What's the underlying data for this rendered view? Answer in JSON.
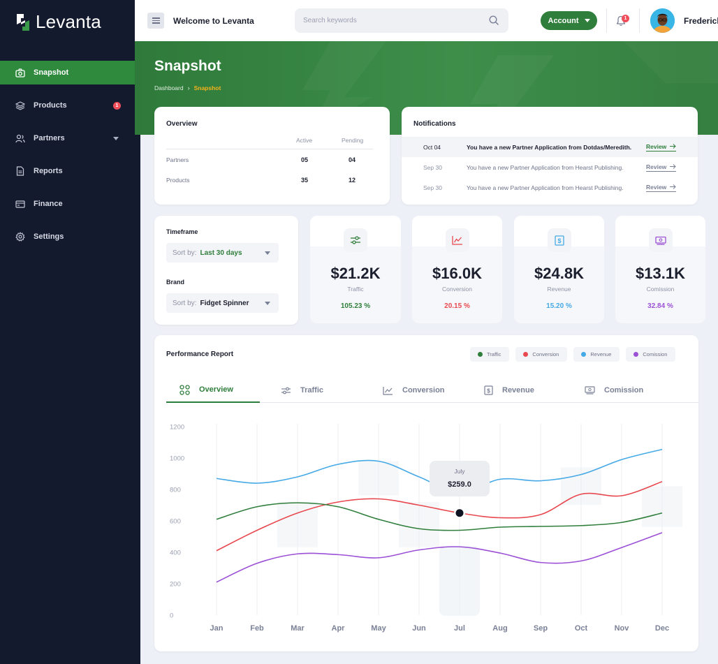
{
  "app": {
    "brand": "Levanta",
    "welcome": "Welcome to Levanta",
    "search_placeholder": "Search keywords",
    "account_label": "Account",
    "notification_count": "1",
    "user_name": "Frederick"
  },
  "sidebar": {
    "items": [
      {
        "label": "Snapshot",
        "icon": "camera-icon",
        "active": true
      },
      {
        "label": "Products",
        "icon": "layers-icon",
        "badge": "1"
      },
      {
        "label": "Partners",
        "icon": "users-icon",
        "expandable": true
      },
      {
        "label": "Reports",
        "icon": "document-icon"
      },
      {
        "label": "Finance",
        "icon": "wallet-icon"
      },
      {
        "label": "Settings",
        "icon": "gear-icon"
      }
    ]
  },
  "header": {
    "title": "Snapshot",
    "breadcrumb": [
      "Dashboard",
      "Snapshot"
    ]
  },
  "overview": {
    "title": "Overview",
    "columns": [
      "Active",
      "Pending"
    ],
    "rows": [
      {
        "label": "Partners",
        "active": "05",
        "pending": "04"
      },
      {
        "label": "Products",
        "active": "35",
        "pending": "12"
      }
    ]
  },
  "notifications": {
    "title": "Notifications",
    "review_label": "Review",
    "items": [
      {
        "date": "Oct 04",
        "message": "You have a new Partner Application from Dotdas/Meredith."
      },
      {
        "date": "Sep 30",
        "message": "You have a new Partner Application from Hearst Publishing."
      },
      {
        "date": "Sep 30",
        "message": "You have a new Partner Application from Hearst Publishing."
      }
    ]
  },
  "filters": {
    "timeframe_label": "Timeframe",
    "timeframe_prefix": "Sort by:",
    "timeframe_value": "Last 30 days",
    "brand_label": "Brand",
    "brand_prefix": "Sort by:",
    "brand_value": "Fidget Spinner"
  },
  "stats": [
    {
      "value": "$21.2K",
      "label": "Traffic",
      "pct": "105.23 %",
      "color": "#2f7e3b",
      "icon": "sliders-icon"
    },
    {
      "value": "$16.0K",
      "label": "Conversion",
      "pct": "20.15 %",
      "color": "#e8484f",
      "icon": "trend-chart-icon"
    },
    {
      "value": "$24.8K",
      "label": "Revenue",
      "pct": "15.20 %",
      "color": "#45a9e6",
      "icon": "dollar-icon"
    },
    {
      "value": "$13.1K",
      "label": "Comission",
      "pct": "32.84 %",
      "color": "#9b50d6",
      "icon": "cash-icon"
    }
  ],
  "performance": {
    "title": "Performance Report",
    "legend": [
      {
        "label": "Traffic",
        "color": "#2f7e3b"
      },
      {
        "label": "Conversion",
        "color": "#e8484f"
      },
      {
        "label": "Revenue",
        "color": "#45a9e6"
      },
      {
        "label": "Comission",
        "color": "#9b50d6"
      }
    ],
    "tabs": [
      {
        "label": "Overview",
        "icon": "grid-circles-icon",
        "active": true
      },
      {
        "label": "Traffic",
        "icon": "sliders-icon"
      },
      {
        "label": "Conversion",
        "icon": "trend-chart-icon"
      },
      {
        "label": "Revenue",
        "icon": "dollar-icon"
      },
      {
        "label": "Comission",
        "icon": "cash-icon"
      }
    ],
    "tooltip": {
      "month": "July",
      "value": "$259.0"
    }
  },
  "chart_data": {
    "type": "line",
    "x": [
      "Jan",
      "Feb",
      "Mar",
      "Apr",
      "May",
      "Jun",
      "Jul",
      "Aug",
      "Sep",
      "Oct",
      "Nov",
      "Dec"
    ],
    "yticks": [
      "1200",
      "1000",
      "800",
      "600",
      "400",
      "200",
      "0"
    ],
    "ylim": [
      0,
      1200
    ],
    "grid": true,
    "series": [
      {
        "name": "Revenue",
        "color": "#45a9e6",
        "values": [
          870,
          840,
          880,
          960,
          980,
          880,
          780,
          865,
          855,
          895,
          990,
          1055
        ]
      },
      {
        "name": "Conversion",
        "color": "#e8484f",
        "values": [
          410,
          540,
          650,
          720,
          740,
          700,
          650,
          620,
          640,
          770,
          760,
          850
        ]
      },
      {
        "name": "Traffic",
        "color": "#2f7e3b",
        "values": [
          610,
          690,
          715,
          690,
          610,
          550,
          540,
          560,
          565,
          570,
          590,
          650
        ]
      },
      {
        "name": "Comission",
        "color": "#9b50d6",
        "values": [
          210,
          330,
          390,
          385,
          365,
          415,
          435,
          395,
          335,
          345,
          430,
          525
        ]
      }
    ]
  }
}
